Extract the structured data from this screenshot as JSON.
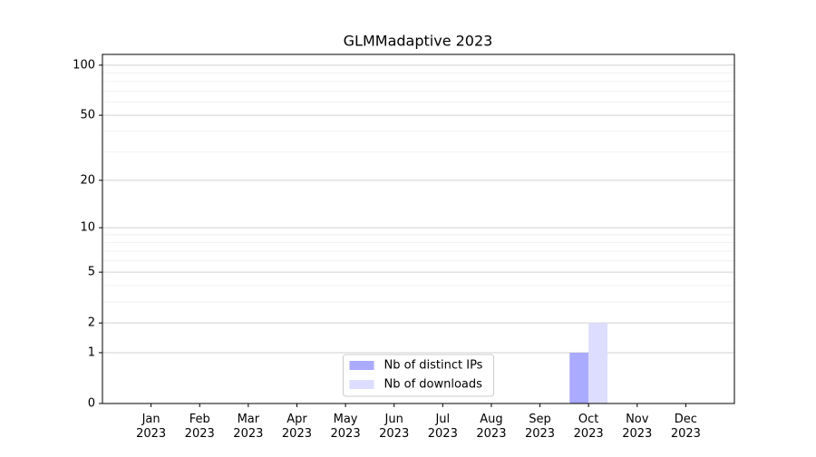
{
  "chart_data": {
    "type": "bar",
    "title": "GLMMadaptive 2023",
    "categories": [
      "Jan 2023",
      "Feb 2023",
      "Mar 2023",
      "Apr 2023",
      "May 2023",
      "Jun 2023",
      "Jul 2023",
      "Aug 2023",
      "Sep 2023",
      "Oct 2023",
      "Nov 2023",
      "Dec 2023"
    ],
    "series": [
      {
        "name": "Nb of distinct IPs",
        "color": "#aaaaff",
        "values": [
          0,
          0,
          0,
          0,
          0,
          0,
          0,
          0,
          0,
          1,
          0,
          0
        ]
      },
      {
        "name": "Nb of downloads",
        "color": "#ddddff",
        "values": [
          0,
          0,
          0,
          0,
          0,
          0,
          0,
          0,
          0,
          2,
          0,
          0
        ]
      }
    ],
    "yscale": "log1p",
    "ylim": [
      0,
      116
    ],
    "yticks": [
      0,
      1,
      2,
      5,
      10,
      20,
      50,
      100
    ],
    "minor_yticks": [
      3,
      4,
      6,
      7,
      8,
      9,
      30,
      40,
      60,
      70,
      80,
      90
    ],
    "grid": true,
    "legend": "lower center"
  }
}
